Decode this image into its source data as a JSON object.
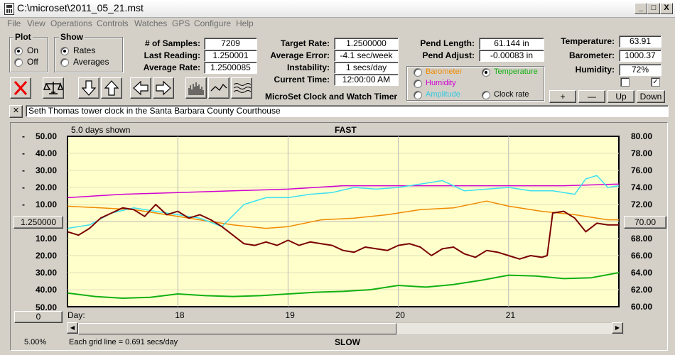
{
  "window": {
    "title": "C:\\microset\\2011_05_21.mst",
    "minimize": "_",
    "maximize": "□",
    "close": "X"
  },
  "menu": [
    "File",
    "View",
    "Operations",
    "Controls",
    "Watches",
    "GPS",
    "Configure",
    "Help"
  ],
  "plot": {
    "label": "Plot",
    "on": "On",
    "off": "Off",
    "selected": "On"
  },
  "show": {
    "label": "Show",
    "rates": "Rates",
    "averages": "Averages",
    "selected": "Rates"
  },
  "stats": {
    "samples_label": "# of Samples:",
    "samples": "7209",
    "last_label": "Last Reading:",
    "last": "1.250001",
    "avg_rate_label": "Average Rate:",
    "avg_rate": "1.2500085",
    "target_label": "Target Rate:",
    "target": "1.2500000",
    "avg_err_label": "Average Error:",
    "avg_err": "-4.1 sec/week",
    "instab_label": "Instability:",
    "instab": "1 secs/day",
    "time_label": "Current Time:",
    "time": "12:00:00 AM",
    "pend_len_label": "Pend Length:",
    "pend_len": "61.144 in",
    "pend_adj_label": "Pend Adjust:",
    "pend_adj": "-0.00083 in",
    "temp_label": "Temperature:",
    "temp": "63.91",
    "baro_label": "Barometer:",
    "baro": "1000.37",
    "hum_label": "Humidity:",
    "hum": "72%"
  },
  "app_name": "MicroSet Clock and Watch Timer",
  "sensors": {
    "barometer": "Barometer",
    "temperature": "Temperature",
    "humidity": "Humidity",
    "amplitude": "Amplitude",
    "clock_rate": "Clock rate",
    "selected": "Temperature"
  },
  "scale_buttons": {
    "plus": "+",
    "minus": "—",
    "up": "Up",
    "down": "Down"
  },
  "note": "Seth Thomas tower clock in the Santa Barbara County Courthouse",
  "note_close": "✕",
  "colors": {
    "rate": "#7a0000",
    "temperature": "#12b012",
    "barometer": "#f08a00",
    "humidity": "#d000d0",
    "amplitude": "#3ce0f0",
    "plot_bg": "#ffffcc"
  },
  "chart_info": {
    "days_shown": "5.0 days shown",
    "fast": "FAST",
    "slow": "SLOW",
    "grid_info": "Each grid line = 0.691 secs/day",
    "zoom": "5.00%",
    "left_center": "1.250000",
    "right_center": "70.00",
    "left_bottom_btn": "0",
    "day_label": "Day:"
  },
  "chart_data": {
    "type": "line",
    "title": "",
    "left_axis": {
      "ticks": [
        "50.00",
        "40.00",
        "30.00",
        "20.00",
        "10.00",
        "",
        "10.00",
        "20.00",
        "30.00",
        "40.00",
        "50.00"
      ],
      "prefix": [
        "-",
        "-",
        "-",
        "-",
        "-",
        "",
        "",
        "",
        "",
        "",
        ""
      ],
      "range": [
        -50,
        50
      ],
      "units": "secs/day"
    },
    "right_axis": {
      "ticks": [
        "80.00",
        "78.00",
        "76.00",
        "74.00",
        "72.00",
        "70.00",
        "68.00",
        "66.00",
        "64.00",
        "62.00",
        "60.00"
      ],
      "range": [
        60,
        80
      ]
    },
    "x_axis": {
      "label": "Day:",
      "ticks": [
        "18",
        "19",
        "20",
        "21"
      ],
      "range": [
        17,
        22
      ]
    },
    "series": [
      {
        "name": "Rate",
        "key": "rate",
        "axis": "left",
        "x": [
          17.0,
          17.1,
          17.2,
          17.3,
          17.4,
          17.5,
          17.6,
          17.7,
          17.8,
          17.9,
          18.0,
          18.1,
          18.2,
          18.3,
          18.4,
          18.5,
          18.6,
          18.7,
          18.8,
          18.9,
          19.0,
          19.1,
          19.2,
          19.3,
          19.4,
          19.5,
          19.6,
          19.7,
          19.8,
          19.9,
          20.0,
          20.1,
          20.2,
          20.3,
          20.4,
          20.5,
          20.6,
          20.7,
          20.8,
          20.9,
          21.0,
          21.1,
          21.2,
          21.3,
          21.35,
          21.4,
          21.5,
          21.6,
          21.7,
          21.8,
          21.9,
          22.0
        ],
        "y": [
          6,
          8,
          4,
          -2,
          -5,
          -8,
          -7,
          -3,
          -10,
          -4,
          -6,
          -2,
          -4,
          -1,
          3,
          8,
          13,
          14,
          12,
          14,
          11,
          14,
          12,
          13,
          14,
          17,
          18,
          15,
          16,
          17,
          14,
          13,
          15,
          20,
          16,
          15,
          19,
          21,
          17,
          18,
          20,
          22,
          20,
          21,
          20,
          -5,
          -6,
          -2,
          6,
          1,
          2,
          2
        ]
      },
      {
        "name": "Humidity",
        "key": "humidity",
        "axis": "left",
        "x": [
          17.0,
          17.5,
          18.0,
          18.5,
          19.0,
          19.5,
          20.0,
          20.5,
          21.0,
          21.5,
          22.0
        ],
        "y": [
          -14,
          -16,
          -17,
          -18,
          -19,
          -21,
          -21,
          -21,
          -21,
          -21,
          -22
        ]
      },
      {
        "name": "Barometer",
        "key": "barometer",
        "axis": "left",
        "x": [
          17.0,
          17.3,
          17.6,
          17.9,
          18.2,
          18.5,
          18.8,
          19.0,
          19.3,
          19.6,
          19.9,
          20.2,
          20.5,
          20.8,
          21.0,
          21.3,
          21.6,
          21.9,
          22.0
        ],
        "y": [
          -9,
          -8,
          -7,
          -4,
          -1,
          2,
          4,
          3,
          -1,
          -2,
          -4,
          -7,
          -8,
          -12,
          -9,
          -6,
          -4,
          -1,
          -1
        ]
      },
      {
        "name": "Amplitude",
        "key": "amplitude",
        "axis": "left",
        "x": [
          17.0,
          17.2,
          17.4,
          17.6,
          17.8,
          18.0,
          18.2,
          18.4,
          18.6,
          18.8,
          19.0,
          19.2,
          19.4,
          19.6,
          19.8,
          20.0,
          20.2,
          20.4,
          20.6,
          20.8,
          21.0,
          21.2,
          21.4,
          21.6,
          21.7,
          21.8,
          21.9,
          22.0
        ],
        "y": [
          4,
          2,
          -5,
          -8,
          -6,
          -4,
          -2,
          3,
          -10,
          -14,
          -14,
          -16,
          -17,
          -20,
          -19,
          -20,
          -22,
          -24,
          -18,
          -19,
          -20,
          -18,
          -18,
          -16,
          -25,
          -27,
          -20,
          -21
        ]
      },
      {
        "name": "Temperature",
        "key": "temperature",
        "axis": "right",
        "x": [
          17.0,
          17.25,
          17.5,
          17.75,
          18.0,
          18.25,
          18.5,
          18.75,
          19.0,
          19.25,
          19.5,
          19.75,
          20.0,
          20.25,
          20.5,
          20.75,
          21.0,
          21.25,
          21.5,
          21.75,
          22.0
        ],
        "y": [
          61.6,
          61.2,
          61.0,
          61.1,
          61.5,
          61.3,
          61.2,
          61.3,
          61.5,
          61.7,
          61.8,
          62.0,
          62.5,
          62.3,
          62.6,
          63.1,
          63.7,
          63.6,
          63.3,
          63.4,
          64.0
        ]
      }
    ]
  }
}
